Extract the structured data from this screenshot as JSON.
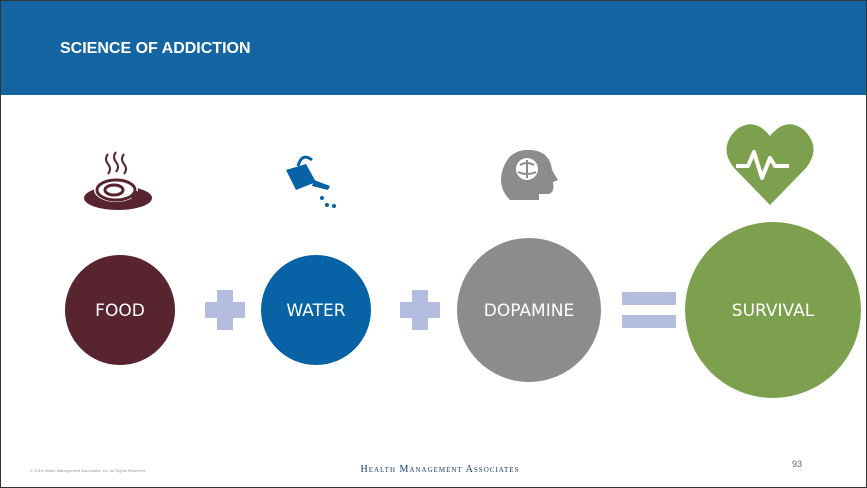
{
  "header": {
    "title": "SCIENCE OF ADDICTION"
  },
  "equation": {
    "terms": [
      {
        "label": "FOOD"
      },
      {
        "label": "WATER"
      },
      {
        "label": "DOPAMINE"
      }
    ],
    "result": {
      "label": "SURVIVAL"
    }
  },
  "footer": {
    "copyright": "© 2018 Health Management Associates, Inc. All Rights Reserved.",
    "brand": "Health Management Associates",
    "page": "93"
  }
}
